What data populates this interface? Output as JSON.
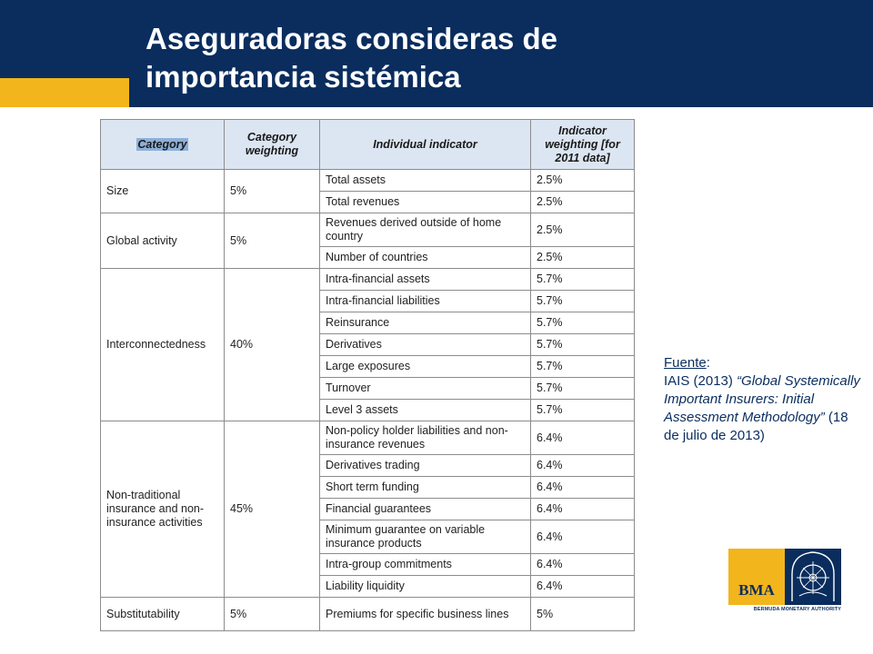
{
  "slide": {
    "title_line1": "Aseguradoras consideras de",
    "title_line2": "importancia sistémica"
  },
  "table": {
    "headers": {
      "category": "Category",
      "category_weighting": "Category weighting",
      "individual_indicator": "Individual indicator",
      "indicator_weighting": "Indicator weighting [for 2011 data]"
    },
    "size": {
      "category": "Size",
      "weight": "5%",
      "rows": [
        {
          "indicator": "Total assets",
          "weight": "2.5%"
        },
        {
          "indicator": "Total revenues",
          "weight": "2.5%"
        }
      ]
    },
    "global": {
      "category": "Global activity",
      "weight": "5%",
      "rows": [
        {
          "indicator": "Revenues derived outside of home country",
          "weight": "2.5%"
        },
        {
          "indicator": "Number of countries",
          "weight": "2.5%"
        }
      ]
    },
    "inter": {
      "category": "Interconnectedness",
      "weight": "40%",
      "rows": [
        {
          "indicator": "Intra-financial assets",
          "weight": "5.7%"
        },
        {
          "indicator": "Intra-financial liabilities",
          "weight": "5.7%"
        },
        {
          "indicator": "Reinsurance",
          "weight": "5.7%"
        },
        {
          "indicator": "Derivatives",
          "weight": "5.7%"
        },
        {
          "indicator": "Large exposures",
          "weight": "5.7%"
        },
        {
          "indicator": "Turnover",
          "weight": "5.7%"
        },
        {
          "indicator": "Level 3 assets",
          "weight": "5.7%"
        }
      ]
    },
    "nontrad": {
      "category": "Non-traditional insurance and non-insurance activities",
      "weight": "45%",
      "rows": [
        {
          "indicator": "Non-policy holder liabilities and non-insurance revenues",
          "weight": "6.4%"
        },
        {
          "indicator": "Derivatives trading",
          "weight": "6.4%"
        },
        {
          "indicator": "Short term funding",
          "weight": "6.4%"
        },
        {
          "indicator": "Financial guarantees",
          "weight": "6.4%"
        },
        {
          "indicator": "Minimum guarantee on variable insurance products",
          "weight": "6.4%"
        },
        {
          "indicator": "Intra-group commitments",
          "weight": "6.4%"
        },
        {
          "indicator": "Liability liquidity",
          "weight": "6.4%"
        }
      ]
    },
    "subst": {
      "category": "Substitutability",
      "weight": "5%",
      "rows": [
        {
          "indicator": "Premiums for specific business lines",
          "weight": "5%"
        }
      ]
    }
  },
  "source": {
    "label": "Fuente",
    "colon": ":",
    "ref_prefix": "IAIS (2013) ",
    "ref_title": "“Global Systemically Important Insurers: Initial Assessment Methodology”",
    "ref_date": " (18 de julio de 2013)"
  },
  "logo": {
    "mark": "BMA",
    "caption": "BERMUDA MONETARY AUTHORITY"
  },
  "colors": {
    "header_navy": "#0a2d5e",
    "accent_gold": "#f2b51c",
    "table_header_bg": "#dce6f2"
  }
}
